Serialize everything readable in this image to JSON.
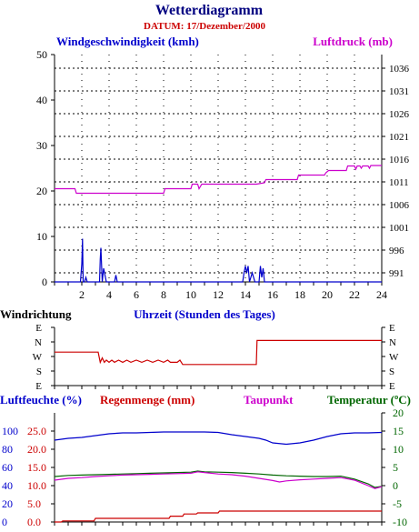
{
  "title": "Wetterdiagramm",
  "subtitle": "DATUM: 17/Dezember/2000",
  "colors": {
    "title": "#000080",
    "subtitle": "#cc0000",
    "wind": "#0000cc",
    "pressure": "#cc00cc",
    "direction": "#cc0000",
    "humidity": "#0000cc",
    "rain": "#cc0000",
    "dewpoint": "#cc00cc",
    "temperature": "#006600",
    "grid": "#000000"
  },
  "chart_data": [
    {
      "type": "line",
      "name": "wind-pressure",
      "x_range": [
        0,
        24
      ],
      "x_ticks": [
        2,
        4,
        6,
        8,
        10,
        12,
        14,
        16,
        18,
        20,
        22,
        24
      ],
      "left_axis_label": "Windgeschwindigkeit (kmh)",
      "right_axis_label": "Luftdruck (mb)",
      "left_ylim": [
        0,
        50
      ],
      "left_ticks": [
        0,
        10,
        20,
        30,
        40,
        50
      ],
      "right_ylim": [
        989,
        1039
      ],
      "right_ticks": [
        991,
        996,
        1001,
        1006,
        1011,
        1016,
        1021,
        1026,
        1031,
        1036
      ],
      "series": [
        {
          "name": "Windgeschwindigkeit (kmh)",
          "axis": "left",
          "points": [
            [
              0,
              0
            ],
            [
              1.9,
              0
            ],
            [
              2.0,
              4
            ],
            [
              2.05,
              9.5
            ],
            [
              2.1,
              0
            ],
            [
              2.2,
              0
            ],
            [
              2.3,
              1
            ],
            [
              2.4,
              0
            ],
            [
              3.3,
              0
            ],
            [
              3.35,
              5
            ],
            [
              3.4,
              7.5
            ],
            [
              3.5,
              0
            ],
            [
              3.6,
              3
            ],
            [
              3.7,
              1.5
            ],
            [
              3.8,
              0
            ],
            [
              4.4,
              0
            ],
            [
              4.5,
              1.5
            ],
            [
              4.6,
              0
            ],
            [
              13.8,
              0
            ],
            [
              13.9,
              2
            ],
            [
              14.0,
              3.5
            ],
            [
              14.1,
              2
            ],
            [
              14.2,
              3.5
            ],
            [
              14.3,
              0
            ],
            [
              14.5,
              2
            ],
            [
              14.7,
              0
            ],
            [
              15.0,
              0
            ],
            [
              15.1,
              3.5
            ],
            [
              15.2,
              1
            ],
            [
              15.3,
              3
            ],
            [
              15.4,
              0
            ],
            [
              24,
              0
            ]
          ]
        },
        {
          "name": "Luftdruck (mb)",
          "axis": "right",
          "points": [
            [
              0,
              1009.5
            ],
            [
              1.5,
              1009.5
            ],
            [
              1.6,
              1008.5
            ],
            [
              8,
              1008.5
            ],
            [
              8.1,
              1009.5
            ],
            [
              10,
              1009.5
            ],
            [
              10.1,
              1010.5
            ],
            [
              10.5,
              1010.5
            ],
            [
              10.6,
              1009.5
            ],
            [
              10.8,
              1010.5
            ],
            [
              14.8,
              1010.5
            ],
            [
              15.4,
              1010.8
            ],
            [
              15.5,
              1011.5
            ],
            [
              17.8,
              1011.5
            ],
            [
              17.9,
              1012.5
            ],
            [
              19.8,
              1012.5
            ],
            [
              19.9,
              1013
            ],
            [
              20.1,
              1013.5
            ],
            [
              21.4,
              1013.5
            ],
            [
              21.5,
              1014.5
            ],
            [
              22.0,
              1014.5
            ],
            [
              22.1,
              1013.8
            ],
            [
              22.2,
              1014.5
            ],
            [
              22.4,
              1014.5
            ],
            [
              22.5,
              1014
            ],
            [
              22.6,
              1014.5
            ],
            [
              23.0,
              1014.5
            ],
            [
              23.1,
              1014
            ],
            [
              23.2,
              1014.6
            ],
            [
              24,
              1014.6
            ]
          ]
        }
      ]
    },
    {
      "type": "line",
      "name": "wind-direction",
      "x_range": [
        0,
        24
      ],
      "left_axis_label": "Windrichtung",
      "center_label": "Uhrzeit (Stunden des Tages)",
      "y_ticks": [
        "E",
        "N",
        "W",
        "S",
        "E"
      ],
      "ylim": [
        0,
        4
      ],
      "series": [
        {
          "name": "Windrichtung",
          "points": [
            [
              0,
              2.3
            ],
            [
              3.2,
              2.3
            ],
            [
              3.35,
              1.6
            ],
            [
              3.5,
              1.9
            ],
            [
              3.65,
              1.6
            ],
            [
              3.8,
              1.75
            ],
            [
              4.0,
              1.6
            ],
            [
              4.2,
              1.75
            ],
            [
              4.4,
              1.6
            ],
            [
              4.7,
              1.75
            ],
            [
              5.0,
              1.6
            ],
            [
              5.3,
              1.75
            ],
            [
              5.6,
              1.6
            ],
            [
              6.0,
              1.75
            ],
            [
              6.4,
              1.6
            ],
            [
              6.8,
              1.75
            ],
            [
              7.2,
              1.6
            ],
            [
              7.6,
              1.75
            ],
            [
              8.0,
              1.6
            ],
            [
              8.3,
              1.75
            ],
            [
              8.5,
              1.6
            ],
            [
              9.0,
              1.6
            ],
            [
              9.2,
              1.75
            ],
            [
              9.4,
              1.45
            ],
            [
              14.8,
              1.45
            ],
            [
              14.85,
              3.1
            ],
            [
              24,
              3.1
            ]
          ]
        }
      ]
    },
    {
      "type": "line",
      "name": "humidity-rain-dewpoint-temperature",
      "x_range": [
        0,
        24
      ],
      "labels": {
        "humidity": "Luftfeuchte (%)",
        "rain": "Regenmenge (mm)",
        "dewpoint": "Taupunkt",
        "temperature": "Temperatur (ºC)"
      },
      "humidity_ylim": [
        0,
        120
      ],
      "humidity_ticks": [
        0,
        20,
        40,
        60,
        80,
        100
      ],
      "rain_ylim": [
        0.0,
        30.0
      ],
      "rain_ticks": [
        "0.0",
        "5.0",
        "10.0",
        "15.0",
        "20.0",
        "25.0"
      ],
      "temp_ylim": [
        -10,
        20
      ],
      "temp_ticks": [
        -10,
        -5,
        0,
        5,
        10,
        15,
        20
      ],
      "series": [
        {
          "name": "Luftfeuchte (%)",
          "axis": "humidity",
          "points": [
            [
              0,
              90
            ],
            [
              1,
              92
            ],
            [
              2,
              93
            ],
            [
              3,
              95
            ],
            [
              4,
              97
            ],
            [
              5,
              98
            ],
            [
              6,
              98
            ],
            [
              7,
              98.5
            ],
            [
              8,
              99
            ],
            [
              9,
              99
            ],
            [
              10,
              99
            ],
            [
              11,
              99
            ],
            [
              12,
              98.5
            ],
            [
              13,
              96
            ],
            [
              14,
              94
            ],
            [
              15,
              92
            ],
            [
              15.5,
              90
            ],
            [
              16,
              87
            ],
            [
              17,
              85.5
            ],
            [
              18,
              87
            ],
            [
              19,
              90
            ],
            [
              20,
              94
            ],
            [
              21,
              97
            ],
            [
              22,
              98
            ],
            [
              23,
              98
            ],
            [
              24,
              98.5
            ]
          ]
        },
        {
          "name": "Regenmenge (mm)",
          "axis": "rain",
          "points": [
            [
              0,
              0
            ],
            [
              0.5,
              0
            ],
            [
              0.6,
              0.3
            ],
            [
              2.9,
              0.3
            ],
            [
              3.0,
              1.0
            ],
            [
              8.4,
              1.0
            ],
            [
              8.5,
              1.6
            ],
            [
              9.4,
              1.6
            ],
            [
              9.5,
              2.2
            ],
            [
              10.4,
              2.2
            ],
            [
              10.5,
              2.5
            ],
            [
              12.0,
              2.5
            ],
            [
              12.1,
              3.0
            ],
            [
              24,
              3.0
            ]
          ]
        },
        {
          "name": "Taupunkt",
          "axis": "temp",
          "points": [
            [
              0,
              1.5
            ],
            [
              1,
              2
            ],
            [
              2,
              2.2
            ],
            [
              3,
              2.5
            ],
            [
              4,
              2.7
            ],
            [
              5,
              2.9
            ],
            [
              6,
              3
            ],
            [
              7,
              3.1
            ],
            [
              8,
              3.2
            ],
            [
              9,
              3.3
            ],
            [
              10,
              3.4
            ],
            [
              10.5,
              3.8
            ],
            [
              11,
              3.6
            ],
            [
              12,
              3.2
            ],
            [
              13,
              3
            ],
            [
              14,
              2.6
            ],
            [
              15,
              2.0
            ],
            [
              16,
              1.4
            ],
            [
              16.5,
              1.0
            ],
            [
              17,
              1.3
            ],
            [
              18,
              1.6
            ],
            [
              19,
              1.8
            ],
            [
              20,
              2.0
            ],
            [
              21,
              2.2
            ],
            [
              22,
              1.5
            ],
            [
              23,
              0
            ],
            [
              23.5,
              -0.8
            ],
            [
              24,
              -0.3
            ]
          ]
        },
        {
          "name": "Temperatur (ºC)",
          "axis": "temp",
          "points": [
            [
              0,
              2.5
            ],
            [
              1,
              2.8
            ],
            [
              2,
              2.9
            ],
            [
              3,
              3
            ],
            [
              4,
              3.1
            ],
            [
              5,
              3.2
            ],
            [
              6,
              3.3
            ],
            [
              7,
              3.4
            ],
            [
              8,
              3.5
            ],
            [
              9,
              3.6
            ],
            [
              10,
              3.7
            ],
            [
              10.5,
              4.0
            ],
            [
              11,
              3.8
            ],
            [
              12,
              3.7
            ],
            [
              13,
              3.6
            ],
            [
              14,
              3.4
            ],
            [
              15,
              3.2
            ],
            [
              16,
              2.9
            ],
            [
              17,
              2.7
            ],
            [
              18,
              2.6
            ],
            [
              19,
              2.5
            ],
            [
              20,
              2.5
            ],
            [
              21,
              2.6
            ],
            [
              22,
              1.8
            ],
            [
              23,
              0.5
            ],
            [
              23.5,
              -0.5
            ],
            [
              24,
              -0.2
            ]
          ]
        }
      ]
    }
  ]
}
